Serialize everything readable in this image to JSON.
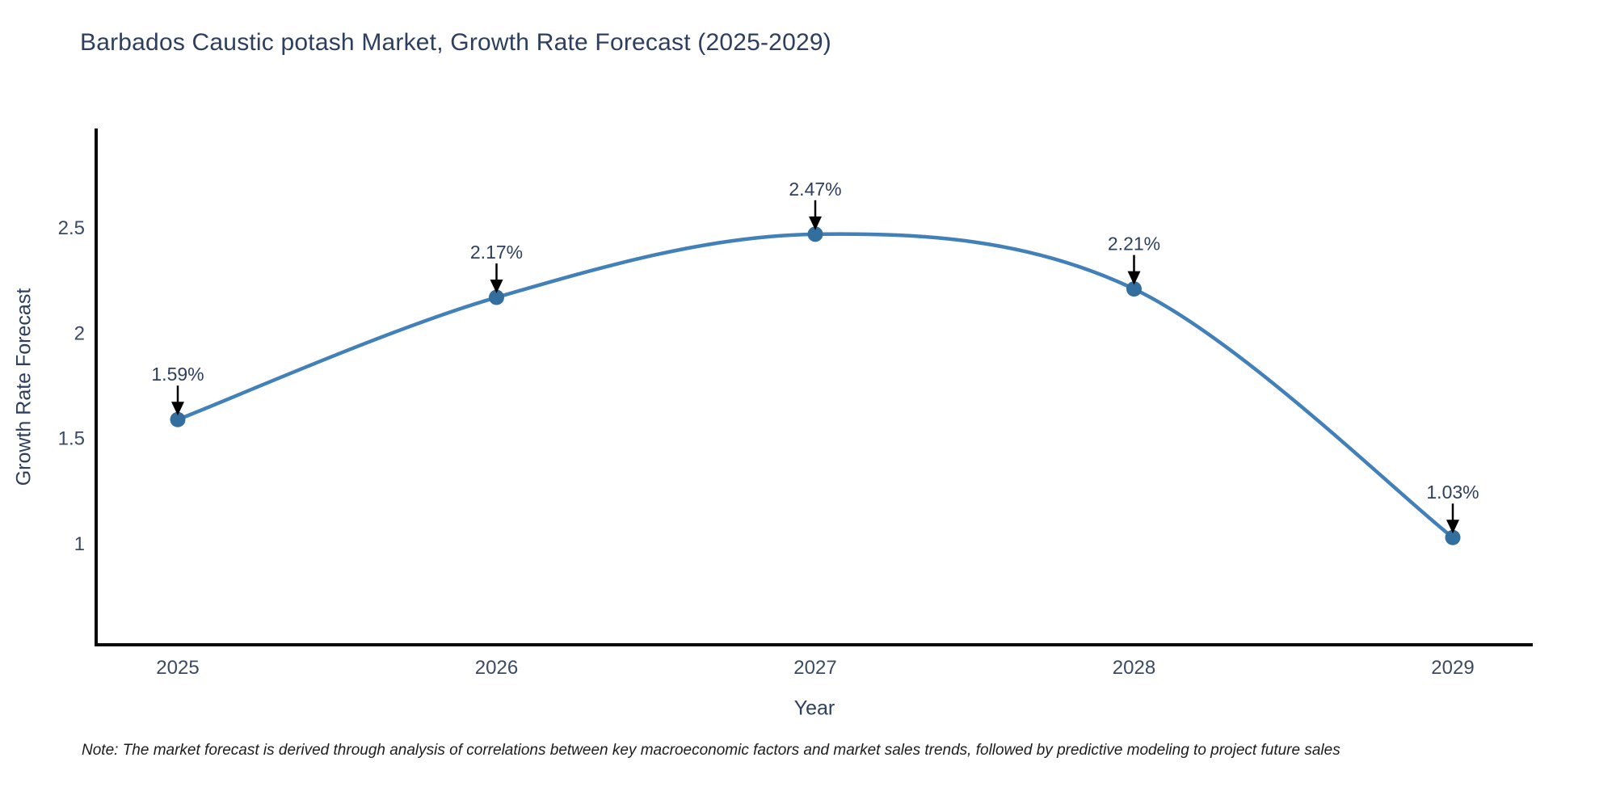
{
  "chart": {
    "title": "Barbados Caustic potash Market, Growth Rate Forecast (2025-2029)",
    "note": "Note: The market forecast is derived through analysis of correlations between key macroeconomic factors and market sales trends, followed by predictive modeling to project future sales"
  },
  "chart_data": {
    "type": "line",
    "title": "Barbados Caustic potash Market, Growth Rate Forecast (2025-2029)",
    "xlabel": "Year",
    "ylabel": "Growth Rate Forecast",
    "categories": [
      "2025",
      "2026",
      "2027",
      "2028",
      "2029"
    ],
    "series": [
      {
        "name": "Growth Rate Forecast",
        "values": [
          1.59,
          2.17,
          2.47,
          2.21,
          1.03
        ]
      }
    ],
    "point_labels": [
      "1.59%",
      "2.17%",
      "2.47%",
      "2.21%",
      "1.03%"
    ],
    "yticks": [
      2.5,
      2.0,
      1.5,
      1.0
    ],
    "ytick_labels": [
      "2.5",
      "2",
      "1.5",
      "1"
    ],
    "ylim": [
      0.51,
      2.97
    ],
    "xlim": [
      2024.74,
      2029.25
    ],
    "grid": false,
    "legend_position": "none",
    "line_shape": "spline",
    "annotation_style": "label-with-down-arrow",
    "colors": {
      "line": "#4180b8",
      "marker": "#336f9e",
      "axis": "#0a0a0a",
      "text": "#2d3f5e",
      "arrow": "#000000",
      "note_text": "#1c1c1c",
      "background": "#ffffff"
    }
  }
}
